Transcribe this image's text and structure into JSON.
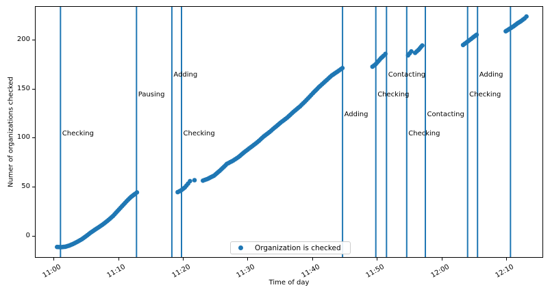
{
  "chart_data": {
    "type": "scatter",
    "title": "",
    "xlabel": "Time of day",
    "ylabel": "Numer of organizations checked",
    "legend": {
      "label": "Organization is checked",
      "position": "lower center"
    },
    "colors": {
      "accent": "#1f77b4",
      "legend_border": "#cccccc",
      "text": "#000000"
    },
    "x_axis": {
      "unit": "minutes after 11:00",
      "tick_labels": [
        "11:00",
        "11:10",
        "11:20",
        "11:30",
        "11:40",
        "11:50",
        "12:00",
        "12:10"
      ],
      "tick_minutes": [
        0,
        10,
        20,
        30,
        40,
        50,
        60,
        70
      ],
      "xlim_minutes": [
        -2.9,
        75.7
      ],
      "tick_rotation_deg": 30
    },
    "y_axis": {
      "tick_values": [
        0,
        50,
        100,
        150,
        200
      ],
      "ylim": [
        -22.6,
        234
      ],
      "grid": false
    },
    "series": [
      {
        "name": "Organization is checked",
        "color": "#1f77b4",
        "marker": "dot",
        "segments": [
          [
            [
              0.45,
              -10.5
            ],
            [
              1.1,
              -10.7
            ],
            [
              1.7,
              -10.3
            ],
            [
              2.3,
              -9.2
            ],
            [
              2.9,
              -7.5
            ],
            [
              3.6,
              -5.2
            ],
            [
              4.3,
              -2.6
            ],
            [
              4.9,
              0.3
            ],
            [
              5.6,
              3.8
            ],
            [
              6.3,
              7
            ],
            [
              7.0,
              10
            ],
            [
              7.7,
              13.2
            ],
            [
              8.4,
              17
            ],
            [
              9.1,
              21
            ],
            [
              9.8,
              26
            ],
            [
              10.5,
              31
            ],
            [
              11.2,
              36
            ],
            [
              11.9,
              40.5
            ],
            [
              12.5,
              43.5
            ],
            [
              12.8,
              45
            ]
          ],
          [
            [
              19.1,
              45.3
            ],
            [
              19.6,
              47
            ],
            [
              20.2,
              50
            ],
            [
              20.7,
              54
            ],
            [
              21.0,
              56.5
            ]
          ],
          [
            [
              21.7,
              57.5
            ]
          ],
          [
            [
              23.0,
              57
            ],
            [
              23.8,
              59
            ],
            [
              24.7,
              62
            ],
            [
              25.6,
              67
            ],
            [
              26.7,
              74
            ],
            [
              27.7,
              77.5
            ],
            [
              28.5,
              81
            ],
            [
              29.4,
              86
            ],
            [
              30.4,
              91
            ],
            [
              31.4,
              96
            ],
            [
              32.4,
              102
            ],
            [
              33.3,
              106.5
            ],
            [
              34.1,
              111
            ],
            [
              35.0,
              116
            ],
            [
              36.0,
              121
            ],
            [
              37.0,
              127
            ],
            [
              38.0,
              132.5
            ],
            [
              39.0,
              139
            ],
            [
              40.0,
              146
            ],
            [
              40.9,
              152
            ],
            [
              41.9,
              158
            ],
            [
              42.9,
              164
            ],
            [
              43.8,
              168
            ],
            [
              44.55,
              171.5
            ]
          ],
          [
            [
              49.2,
              173
            ],
            [
              49.7,
              175.5
            ],
            [
              50.1,
              178.5
            ],
            [
              50.5,
              181.5
            ],
            [
              50.9,
              184
            ],
            [
              51.2,
              186
            ]
          ],
          [
            [
              54.7,
              184.5
            ],
            [
              55.2,
              188.5
            ]
          ],
          [
            [
              55.8,
              187
            ],
            [
              56.3,
              190
            ],
            [
              56.9,
              194.5
            ]
          ],
          [
            [
              63.2,
              195
            ],
            [
              63.7,
              197.5
            ],
            [
              64.2,
              200
            ],
            [
              64.7,
              202.5
            ],
            [
              65.3,
              205.5
            ]
          ],
          [
            [
              69.8,
              209
            ],
            [
              70.4,
              211.5
            ],
            [
              71.0,
              214
            ],
            [
              71.6,
              217
            ],
            [
              72.2,
              219.5
            ],
            [
              72.7,
              222
            ],
            [
              73.0,
              224
            ]
          ]
        ]
      }
    ],
    "vlines": [
      {
        "t_min": 0.98,
        "label": "Checking",
        "label_y": 100
      },
      {
        "t_min": 12.73,
        "label": "Pausing",
        "label_y": 140
      },
      {
        "t_min": 18.2,
        "label": "Adding",
        "label_y": 160
      },
      {
        "t_min": 19.69,
        "label": "Checking",
        "label_y": 100
      },
      {
        "t_min": 44.58,
        "label": "Adding",
        "label_y": 120
      },
      {
        "t_min": 49.72,
        "label": "Checking",
        "label_y": 140
      },
      {
        "t_min": 51.37,
        "label": "Contacting",
        "label_y": 160
      },
      {
        "t_min": 54.49,
        "label": "Checking",
        "label_y": 100
      },
      {
        "t_min": 57.37,
        "label": "Contacting",
        "label_y": 120
      },
      {
        "t_min": 63.9,
        "label": "Checking",
        "label_y": 140
      },
      {
        "t_min": 65.44,
        "label": "Adding",
        "label_y": 160
      },
      {
        "t_min": 70.53,
        "label": "",
        "label_y": null
      }
    ]
  }
}
